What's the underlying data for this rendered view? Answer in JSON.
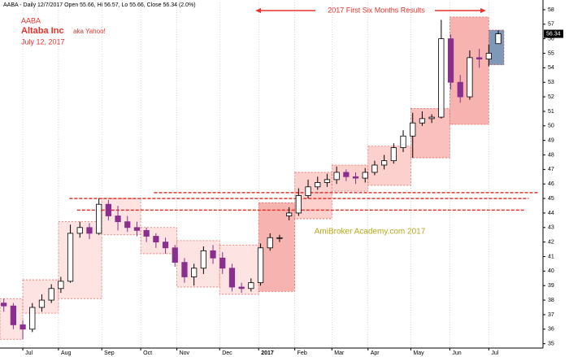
{
  "chart_data": {
    "type": "candlestick",
    "header": "AABA - Daily 12/7/2017 Open 55.66, Hi 56.57, Lo 55.66, Close 56.34 (2.0%)",
    "ticker": "AABA",
    "company": "Altaba Inc",
    "aka": "aka Yahoo!",
    "date": "July 12, 2017",
    "banner": "2017 First Six Months Results",
    "watermark": "AmiBroker Academy.com  2017",
    "last_price": 56.34,
    "up_color": "#ffffff",
    "down_color": "#8b2f8f",
    "xlim": [
      -0.4,
      56.7
    ],
    "ylim": [
      34.7,
      58.5
    ],
    "yticks": [
      35,
      36,
      37,
      38,
      39,
      40,
      41,
      42,
      43,
      44,
      45,
      46,
      47,
      48,
      49,
      50,
      51,
      52,
      53,
      54,
      55,
      56,
      57,
      58
    ],
    "xticks": [
      {
        "value": 2,
        "label": "Jul"
      },
      {
        "value": 5.75,
        "label": "Aug"
      },
      {
        "value": 10.3,
        "label": "Sep"
      },
      {
        "value": 14.4,
        "label": "Oct"
      },
      {
        "value": 18.2,
        "label": "Nov"
      },
      {
        "value": 22.7,
        "label": "Dec"
      },
      {
        "value": 26.8,
        "label": "2017"
      },
      {
        "value": 30.6,
        "label": "Feb"
      },
      {
        "value": 34.5,
        "label": "Mar"
      },
      {
        "value": 38.3,
        "label": "Apr"
      },
      {
        "value": 42.8,
        "label": "May"
      },
      {
        "value": 46.9,
        "label": "Jun"
      },
      {
        "value": 51,
        "label": "Jul"
      }
    ],
    "open": [
      37.8,
      37.6,
      36.3,
      36.0,
      37.5,
      38.0,
      38.8,
      39.3,
      42.6,
      43.0,
      42.6,
      44.6,
      43.8,
      43.4,
      43.0,
      42.8,
      42.4,
      42.0,
      41.6,
      40.6,
      39.6,
      40.2,
      41.4,
      40.9,
      40.2,
      38.9,
      38.8,
      39.2,
      41.6,
      42.3,
      43.8,
      44.0,
      45.2,
      45.8,
      46.1,
      46.3,
      46.8,
      46.5,
      46.4,
      46.8,
      47.3,
      47.6,
      48.5,
      49.3,
      50.2,
      50.5,
      50.6,
      56.0,
      53.0,
      52.0,
      54.7,
      54.6,
      55.66
    ],
    "high": [
      38.1,
      37.8,
      36.6,
      37.8,
      38.4,
      39.1,
      39.6,
      43.2,
      43.4,
      43.3,
      45.0,
      44.9,
      44.5,
      43.8,
      43.4,
      43.0,
      42.6,
      42.3,
      41.8,
      40.9,
      40.5,
      41.7,
      41.8,
      41.3,
      40.5,
      39.2,
      39.5,
      41.9,
      42.6,
      42.5,
      44.4,
      45.7,
      46.3,
      46.5,
      46.7,
      47.2,
      47.0,
      46.8,
      47.1,
      47.6,
      48.0,
      48.8,
      49.7,
      50.9,
      51.0,
      50.8,
      57.3,
      56.3,
      53.5,
      55.2,
      55.3,
      55.6,
      56.57
    ],
    "low": [
      37.2,
      36.0,
      35.3,
      35.8,
      37.2,
      37.8,
      38.5,
      39.2,
      42.3,
      42.2,
      42.5,
      43.5,
      42.8,
      42.7,
      42.4,
      42.0,
      41.6,
      41.2,
      40.3,
      39.2,
      39.0,
      39.8,
      40.5,
      39.8,
      38.6,
      38.5,
      38.6,
      39.0,
      41.4,
      42.0,
      43.5,
      43.8,
      45.0,
      45.6,
      45.8,
      46.0,
      46.2,
      46.0,
      46.1,
      46.6,
      47.0,
      47.4,
      48.2,
      47.8,
      50.0,
      50.2,
      50.5,
      52.5,
      51.6,
      51.8,
      54.0,
      54.1,
      55.66
    ],
    "close": [
      37.6,
      36.3,
      36.0,
      37.5,
      38.0,
      38.8,
      39.3,
      42.6,
      43.0,
      42.6,
      44.6,
      43.8,
      43.4,
      43.0,
      42.8,
      42.4,
      42.0,
      41.6,
      40.6,
      39.6,
      40.2,
      41.4,
      40.9,
      40.2,
      38.9,
      38.8,
      39.2,
      41.6,
      42.3,
      42.3,
      44.0,
      45.2,
      45.8,
      46.1,
      46.3,
      46.8,
      46.5,
      46.4,
      46.8,
      47.3,
      47.6,
      48.5,
      49.3,
      50.2,
      50.5,
      50.6,
      56.0,
      53.0,
      52.0,
      54.7,
      54.6,
      55.0,
      56.34
    ],
    "month_ranges": [
      {
        "x0": -0.4,
        "x1": 2,
        "high": 38.1,
        "low": 35.3,
        "color": "#fde3e1"
      },
      {
        "x0": 2,
        "x1": 5.75,
        "high": 39.4,
        "low": 37.1,
        "color": "#fde3e1"
      },
      {
        "x0": 5.75,
        "x1": 10.3,
        "high": 43.4,
        "low": 38.1,
        "color": "#fde3e1"
      },
      {
        "x0": 10.3,
        "x1": 14.4,
        "high": 45.0,
        "low": 42.5,
        "color": "#fde3e1"
      },
      {
        "x0": 14.4,
        "x1": 18.2,
        "high": 43.0,
        "low": 41.2,
        "color": "#fde3e1"
      },
      {
        "x0": 18.2,
        "x1": 22.7,
        "high": 42.1,
        "low": 38.9,
        "color": "#fde3e1"
      },
      {
        "x0": 22.7,
        "x1": 26.8,
        "high": 41.8,
        "low": 38.4,
        "color": "#fde3e1"
      },
      {
        "x0": 26.8,
        "x1": 30.6,
        "high": 44.7,
        "low": 38.6,
        "color": "#f7b3b0"
      },
      {
        "x0": 30.6,
        "x1": 34.5,
        "high": 46.8,
        "low": 43.6,
        "color": "#fbd0cd"
      },
      {
        "x0": 34.5,
        "x1": 38.3,
        "high": 47.3,
        "low": 45.5,
        "color": "#fbd0cd"
      },
      {
        "x0": 38.3,
        "x1": 42.8,
        "high": 48.6,
        "low": 45.9,
        "color": "#fbd0cd"
      },
      {
        "x0": 42.8,
        "x1": 46.9,
        "high": 51.2,
        "low": 47.8,
        "color": "#f9c0bd"
      },
      {
        "x0": 46.9,
        "x1": 51,
        "high": 57.5,
        "low": 50.1,
        "color": "#f7b3b0"
      },
      {
        "x0": 51,
        "x1": 52.6,
        "high": 56.6,
        "low": 54.2,
        "color": "#7f98b6"
      }
    ],
    "levels": [
      {
        "value": 45.4,
        "x0": 15.8,
        "x1": 56.3
      },
      {
        "value": 45.0,
        "x0": 6.9,
        "x1": 55.2
      },
      {
        "value": 44.2,
        "x0": 7.7,
        "x1": 54.7
      }
    ]
  }
}
